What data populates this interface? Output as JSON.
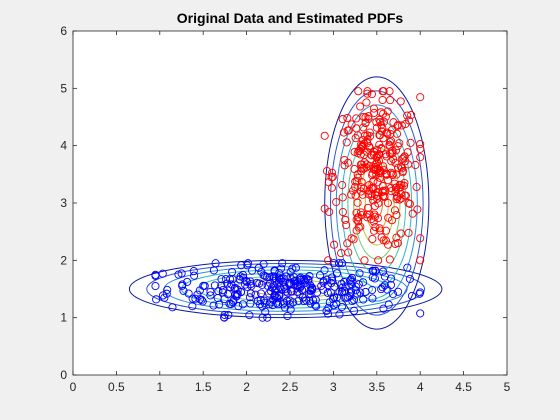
{
  "chart_data": {
    "type": "scatter",
    "title": "Original Data and Estimated PDFs",
    "xlabel": "",
    "ylabel": "",
    "xlim": [
      0,
      5
    ],
    "ylim": [
      0,
      6
    ],
    "xticks": [
      "0",
      "0.5",
      "1",
      "1.5",
      "2",
      "2.5",
      "3",
      "3.5",
      "4",
      "4.5",
      "5"
    ],
    "yticks": [
      "0",
      "1",
      "2",
      "3",
      "4",
      "5",
      "6"
    ],
    "grid": false,
    "marker": "open-circle",
    "series": [
      {
        "color": "#0000ff",
        "distribution": {
          "x_range": [
            0.95,
            4.0
          ],
          "y_range": [
            1.0,
            1.95
          ],
          "center": [
            2.45,
            1.5
          ],
          "count": 300
        }
      },
      {
        "color": "#ff0000",
        "distribution": {
          "x_range": [
            2.9,
            4.0
          ],
          "y_range": [
            2.0,
            4.95
          ],
          "center": [
            3.5,
            3.5
          ],
          "count": 300
        }
      }
    ],
    "pdf_contours": [
      {
        "center": [
          2.45,
          1.5
        ],
        "semi_axes": [
          1.8,
          0.5
        ],
        "levels": 9
      },
      {
        "center": [
          3.5,
          3.0
        ],
        "semi_axes": [
          0.6,
          2.2
        ],
        "levels": 9
      }
    ],
    "contour_colors": [
      "#0a1a9e",
      "#2a55c8",
      "#2b8fd6",
      "#22b8c8",
      "#3cc9a8",
      "#6fcf6a",
      "#b5c93c",
      "#e5a52c",
      "#e8782c"
    ]
  }
}
